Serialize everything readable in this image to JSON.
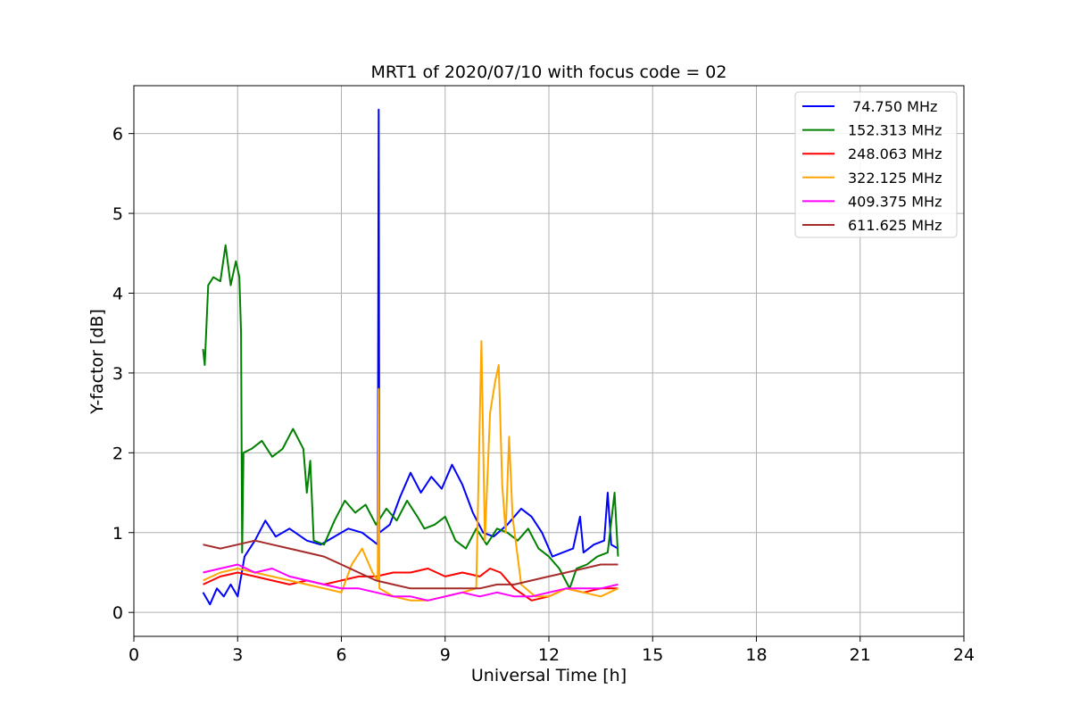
{
  "chart_data": {
    "type": "line",
    "title": "MRT1 of 2020/07/10 with focus code = 02",
    "xlabel": "Universal Time [h]",
    "ylabel": "Y-factor [dB]",
    "xlim": [
      0,
      24
    ],
    "ylim": [
      -0.3,
      6.6
    ],
    "xticks": [
      0,
      3,
      6,
      9,
      12,
      15,
      18,
      21,
      24
    ],
    "yticks": [
      0,
      1,
      2,
      3,
      4,
      5,
      6
    ],
    "grid": true,
    "legend_position": "top-right",
    "series": [
      {
        "name": " 74.750 MHz",
        "color": "#0000ff",
        "points": [
          [
            2.0,
            0.25
          ],
          [
            2.2,
            0.1
          ],
          [
            2.4,
            0.3
          ],
          [
            2.6,
            0.2
          ],
          [
            2.8,
            0.35
          ],
          [
            3.0,
            0.2
          ],
          [
            3.2,
            0.7
          ],
          [
            3.5,
            0.9
          ],
          [
            3.8,
            1.15
          ],
          [
            4.1,
            0.95
          ],
          [
            4.5,
            1.05
          ],
          [
            5.0,
            0.9
          ],
          [
            5.4,
            0.85
          ],
          [
            5.8,
            0.95
          ],
          [
            6.2,
            1.05
          ],
          [
            6.6,
            1.0
          ],
          [
            6.9,
            0.9
          ],
          [
            7.05,
            0.85
          ],
          [
            7.08,
            6.3
          ],
          [
            7.1,
            1.0
          ],
          [
            7.4,
            1.1
          ],
          [
            7.7,
            1.45
          ],
          [
            8.0,
            1.75
          ],
          [
            8.3,
            1.5
          ],
          [
            8.6,
            1.7
          ],
          [
            8.9,
            1.55
          ],
          [
            9.2,
            1.85
          ],
          [
            9.5,
            1.6
          ],
          [
            9.8,
            1.25
          ],
          [
            10.1,
            1.0
          ],
          [
            10.4,
            0.95
          ],
          [
            10.8,
            1.1
          ],
          [
            11.2,
            1.3
          ],
          [
            11.5,
            1.2
          ],
          [
            11.8,
            1.0
          ],
          [
            12.1,
            0.7
          ],
          [
            12.4,
            0.75
          ],
          [
            12.7,
            0.8
          ],
          [
            12.9,
            1.2
          ],
          [
            13.0,
            0.75
          ],
          [
            13.3,
            0.85
          ],
          [
            13.6,
            0.9
          ],
          [
            13.7,
            1.5
          ],
          [
            13.8,
            0.85
          ],
          [
            14.0,
            0.8
          ]
        ]
      },
      {
        "name": "152.313 MHz",
        "color": "#008000",
        "points": [
          [
            2.0,
            3.3
          ],
          [
            2.05,
            3.1
          ],
          [
            2.15,
            4.1
          ],
          [
            2.3,
            4.2
          ],
          [
            2.5,
            4.15
          ],
          [
            2.65,
            4.6
          ],
          [
            2.8,
            4.1
          ],
          [
            2.95,
            4.4
          ],
          [
            3.05,
            4.2
          ],
          [
            3.1,
            3.5
          ],
          [
            3.13,
            0.75
          ],
          [
            3.17,
            2.0
          ],
          [
            3.4,
            2.05
          ],
          [
            3.7,
            2.15
          ],
          [
            4.0,
            1.95
          ],
          [
            4.3,
            2.05
          ],
          [
            4.6,
            2.3
          ],
          [
            4.9,
            2.05
          ],
          [
            5.0,
            1.5
          ],
          [
            5.1,
            1.9
          ],
          [
            5.2,
            0.9
          ],
          [
            5.5,
            0.85
          ],
          [
            5.8,
            1.15
          ],
          [
            6.1,
            1.4
          ],
          [
            6.4,
            1.25
          ],
          [
            6.7,
            1.35
          ],
          [
            7.0,
            1.1
          ],
          [
            7.3,
            1.3
          ],
          [
            7.6,
            1.15
          ],
          [
            7.9,
            1.4
          ],
          [
            8.2,
            1.2
          ],
          [
            8.4,
            1.05
          ],
          [
            8.7,
            1.1
          ],
          [
            9.0,
            1.2
          ],
          [
            9.3,
            0.9
          ],
          [
            9.6,
            0.8
          ],
          [
            9.9,
            1.05
          ],
          [
            10.2,
            0.85
          ],
          [
            10.5,
            1.05
          ],
          [
            10.8,
            1.0
          ],
          [
            11.1,
            0.9
          ],
          [
            11.4,
            1.05
          ],
          [
            11.7,
            0.8
          ],
          [
            12.0,
            0.7
          ],
          [
            12.3,
            0.55
          ],
          [
            12.6,
            0.3
          ],
          [
            12.8,
            0.55
          ],
          [
            13.1,
            0.6
          ],
          [
            13.4,
            0.7
          ],
          [
            13.7,
            0.75
          ],
          [
            13.9,
            1.5
          ],
          [
            14.0,
            0.7
          ]
        ]
      },
      {
        "name": "248.063 MHz",
        "color": "#ff0000",
        "points": [
          [
            2.0,
            0.35
          ],
          [
            2.5,
            0.45
          ],
          [
            3.0,
            0.5
          ],
          [
            3.5,
            0.45
          ],
          [
            4.0,
            0.4
          ],
          [
            4.5,
            0.35
          ],
          [
            5.0,
            0.4
          ],
          [
            5.5,
            0.35
          ],
          [
            6.0,
            0.4
          ],
          [
            6.5,
            0.45
          ],
          [
            7.0,
            0.45
          ],
          [
            7.5,
            0.5
          ],
          [
            8.0,
            0.5
          ],
          [
            8.5,
            0.55
          ],
          [
            9.0,
            0.45
          ],
          [
            9.5,
            0.5
          ],
          [
            10.0,
            0.45
          ],
          [
            10.3,
            0.55
          ],
          [
            10.6,
            0.5
          ],
          [
            11.0,
            0.3
          ],
          [
            11.5,
            0.15
          ],
          [
            12.0,
            0.2
          ],
          [
            12.5,
            0.3
          ],
          [
            13.0,
            0.25
          ],
          [
            13.5,
            0.3
          ],
          [
            14.0,
            0.3
          ]
        ]
      },
      {
        "name": "322.125 MHz",
        "color": "#ffa500",
        "points": [
          [
            2.0,
            0.4
          ],
          [
            2.5,
            0.5
          ],
          [
            3.0,
            0.55
          ],
          [
            3.5,
            0.5
          ],
          [
            4.0,
            0.45
          ],
          [
            4.5,
            0.4
          ],
          [
            5.0,
            0.35
          ],
          [
            5.5,
            0.3
          ],
          [
            6.0,
            0.25
          ],
          [
            6.3,
            0.6
          ],
          [
            6.6,
            0.8
          ],
          [
            6.9,
            0.5
          ],
          [
            7.05,
            0.4
          ],
          [
            7.08,
            2.8
          ],
          [
            7.1,
            0.3
          ],
          [
            7.5,
            0.2
          ],
          [
            8.0,
            0.15
          ],
          [
            8.5,
            0.15
          ],
          [
            9.0,
            0.2
          ],
          [
            9.5,
            0.25
          ],
          [
            9.9,
            0.3
          ],
          [
            10.05,
            3.4
          ],
          [
            10.15,
            0.9
          ],
          [
            10.3,
            2.5
          ],
          [
            10.45,
            2.9
          ],
          [
            10.55,
            3.1
          ],
          [
            10.65,
            1.6
          ],
          [
            10.75,
            1.0
          ],
          [
            10.85,
            2.2
          ],
          [
            10.95,
            1.2
          ],
          [
            11.2,
            0.35
          ],
          [
            11.6,
            0.2
          ],
          [
            12.0,
            0.2
          ],
          [
            12.5,
            0.3
          ],
          [
            13.0,
            0.25
          ],
          [
            13.5,
            0.2
          ],
          [
            14.0,
            0.3
          ]
        ]
      },
      {
        "name": "409.375 MHz",
        "color": "#ff00ff",
        "points": [
          [
            2.0,
            0.5
          ],
          [
            2.5,
            0.55
          ],
          [
            3.0,
            0.6
          ],
          [
            3.5,
            0.5
          ],
          [
            4.0,
            0.55
          ],
          [
            4.5,
            0.45
          ],
          [
            5.0,
            0.4
          ],
          [
            5.5,
            0.35
          ],
          [
            6.0,
            0.3
          ],
          [
            6.5,
            0.3
          ],
          [
            7.0,
            0.25
          ],
          [
            7.5,
            0.2
          ],
          [
            8.0,
            0.2
          ],
          [
            8.5,
            0.15
          ],
          [
            9.0,
            0.2
          ],
          [
            9.5,
            0.25
          ],
          [
            10.0,
            0.2
          ],
          [
            10.5,
            0.25
          ],
          [
            11.0,
            0.2
          ],
          [
            11.5,
            0.2
          ],
          [
            12.0,
            0.25
          ],
          [
            12.5,
            0.3
          ],
          [
            13.0,
            0.3
          ],
          [
            13.5,
            0.3
          ],
          [
            14.0,
            0.35
          ]
        ]
      },
      {
        "name": "611.625 MHz",
        "color": "#a52a2a",
        "points": [
          [
            2.0,
            0.85
          ],
          [
            2.5,
            0.8
          ],
          [
            3.0,
            0.85
          ],
          [
            3.5,
            0.9
          ],
          [
            4.0,
            0.85
          ],
          [
            4.5,
            0.8
          ],
          [
            5.0,
            0.75
          ],
          [
            5.5,
            0.7
          ],
          [
            6.0,
            0.6
          ],
          [
            6.5,
            0.5
          ],
          [
            7.0,
            0.4
          ],
          [
            7.5,
            0.35
          ],
          [
            8.0,
            0.3
          ],
          [
            8.5,
            0.3
          ],
          [
            9.0,
            0.3
          ],
          [
            9.5,
            0.3
          ],
          [
            10.0,
            0.3
          ],
          [
            10.5,
            0.35
          ],
          [
            11.0,
            0.35
          ],
          [
            11.5,
            0.4
          ],
          [
            12.0,
            0.45
          ],
          [
            12.5,
            0.5
          ],
          [
            13.0,
            0.55
          ],
          [
            13.5,
            0.6
          ],
          [
            14.0,
            0.6
          ]
        ]
      }
    ]
  }
}
